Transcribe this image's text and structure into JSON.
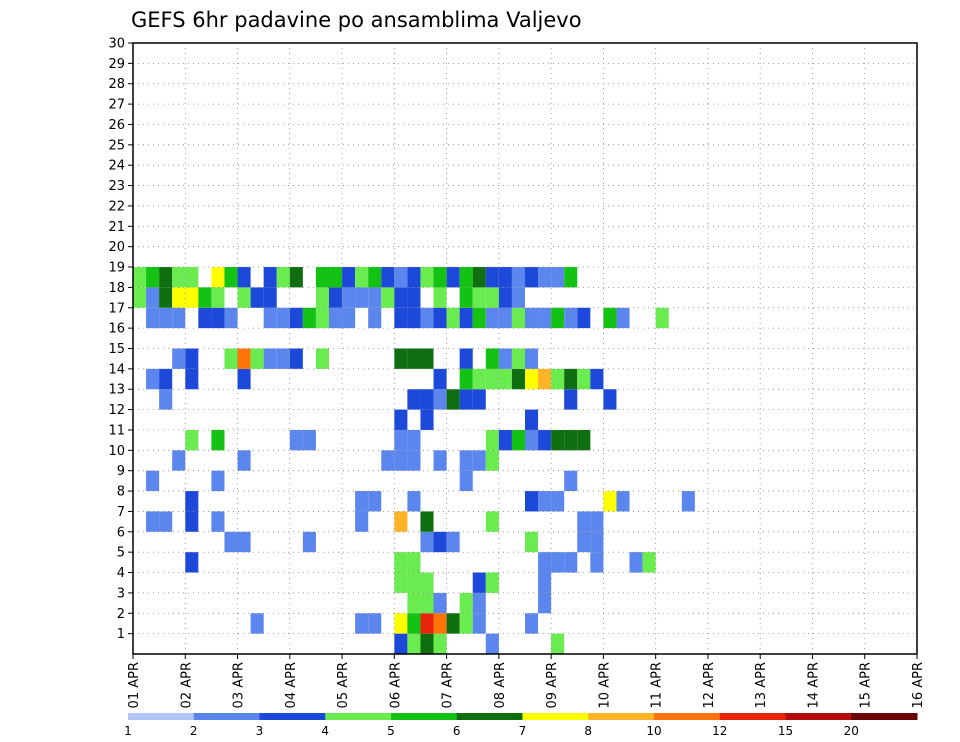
{
  "chart_data": {
    "type": "heatmap",
    "title": "GEFS 6hr padavine po ansamblima Valjevo",
    "x_tick_labels": [
      "01 APR",
      "02 APR",
      "03 APR",
      "04 APR",
      "05 APR",
      "06 APR",
      "07 APR",
      "08 APR",
      "09 APR",
      "10 APR",
      "11 APR",
      "12 APR",
      "13 APR",
      "14 APR",
      "15 APR",
      "16 APR"
    ],
    "y_tick_labels": [
      "1",
      "2",
      "3",
      "4",
      "5",
      "6",
      "7",
      "8",
      "9",
      "10",
      "11",
      "12",
      "13",
      "14",
      "15",
      "16",
      "17",
      "18",
      "19",
      "20",
      "21",
      "22",
      "23",
      "24",
      "25",
      "26",
      "27",
      "28",
      "29",
      "30"
    ],
    "x_range": [
      0,
      60
    ],
    "y_range": [
      0,
      30
    ],
    "grid": true,
    "colorbar": {
      "labels": [
        "1",
        "2",
        "3",
        "4",
        "5",
        "6",
        "7",
        "8",
        "10",
        "12",
        "15",
        "20"
      ],
      "colors": [
        "#b3c6f7",
        "#5b86ee",
        "#1c49d9",
        "#6aeb4f",
        "#14c214",
        "#0f6e0f",
        "#ffff00",
        "#ffb327",
        "#ff7308",
        "#e8250a",
        "#b40c0c",
        "#6b0606"
      ]
    },
    "cells": [
      [
        20,
        0,
        2
      ],
      [
        21,
        0,
        3
      ],
      [
        22,
        0,
        5
      ],
      [
        23,
        0,
        3
      ],
      [
        27,
        0,
        1
      ],
      [
        32,
        0,
        3
      ],
      [
        9,
        1,
        1
      ],
      [
        17,
        1,
        1
      ],
      [
        18,
        1,
        1
      ],
      [
        20,
        1,
        6
      ],
      [
        21,
        1,
        4
      ],
      [
        22,
        1,
        9
      ],
      [
        23,
        1,
        8
      ],
      [
        24,
        1,
        5
      ],
      [
        25,
        1,
        3
      ],
      [
        26,
        1,
        1
      ],
      [
        30,
        1,
        1
      ],
      [
        21,
        2,
        3
      ],
      [
        22,
        2,
        3
      ],
      [
        23,
        2,
        1
      ],
      [
        25,
        2,
        3
      ],
      [
        26,
        2,
        1
      ],
      [
        31,
        2,
        1
      ],
      [
        20,
        3,
        3
      ],
      [
        21,
        3,
        3
      ],
      [
        22,
        3,
        3
      ],
      [
        26,
        3,
        2
      ],
      [
        27,
        3,
        3
      ],
      [
        31,
        3,
        1
      ],
      [
        4,
        4,
        2
      ],
      [
        20,
        4,
        3
      ],
      [
        21,
        4,
        3
      ],
      [
        31,
        4,
        1
      ],
      [
        32,
        4,
        1
      ],
      [
        33,
        4,
        1
      ],
      [
        35,
        4,
        1
      ],
      [
        38,
        4,
        1
      ],
      [
        39,
        4,
        3
      ],
      [
        7,
        5,
        1
      ],
      [
        8,
        5,
        1
      ],
      [
        13,
        5,
        1
      ],
      [
        22,
        5,
        1
      ],
      [
        23,
        5,
        2
      ],
      [
        24,
        5,
        1
      ],
      [
        30,
        5,
        3
      ],
      [
        34,
        5,
        1
      ],
      [
        35,
        5,
        1
      ],
      [
        1,
        6,
        1
      ],
      [
        2,
        6,
        1
      ],
      [
        4,
        6,
        2
      ],
      [
        6,
        6,
        1
      ],
      [
        17,
        6,
        1
      ],
      [
        20,
        6,
        7
      ],
      [
        22,
        6,
        5
      ],
      [
        27,
        6,
        3
      ],
      [
        34,
        6,
        1
      ],
      [
        35,
        6,
        1
      ],
      [
        4,
        7,
        2
      ],
      [
        17,
        7,
        1
      ],
      [
        18,
        7,
        1
      ],
      [
        21,
        7,
        1
      ],
      [
        30,
        7,
        2
      ],
      [
        31,
        7,
        1
      ],
      [
        32,
        7,
        1
      ],
      [
        36,
        7,
        6
      ],
      [
        37,
        7,
        1
      ],
      [
        42,
        7,
        1
      ],
      [
        1,
        8,
        1
      ],
      [
        6,
        8,
        1
      ],
      [
        25,
        8,
        1
      ],
      [
        33,
        8,
        1
      ],
      [
        3,
        9,
        1
      ],
      [
        8,
        9,
        1
      ],
      [
        19,
        9,
        1
      ],
      [
        20,
        9,
        1
      ],
      [
        21,
        9,
        1
      ],
      [
        23,
        9,
        1
      ],
      [
        25,
        9,
        1
      ],
      [
        26,
        9,
        1
      ],
      [
        27,
        9,
        3
      ],
      [
        4,
        10,
        3
      ],
      [
        6,
        10,
        4
      ],
      [
        12,
        10,
        1
      ],
      [
        13,
        10,
        1
      ],
      [
        20,
        10,
        1
      ],
      [
        21,
        10,
        1
      ],
      [
        27,
        10,
        3
      ],
      [
        28,
        10,
        2
      ],
      [
        29,
        10,
        4
      ],
      [
        30,
        10,
        1
      ],
      [
        31,
        10,
        2
      ],
      [
        32,
        10,
        5
      ],
      [
        33,
        10,
        5
      ],
      [
        34,
        10,
        5
      ],
      [
        20,
        11,
        2
      ],
      [
        22,
        11,
        2
      ],
      [
        30,
        11,
        2
      ],
      [
        2,
        12,
        1
      ],
      [
        21,
        12,
        2
      ],
      [
        22,
        12,
        2
      ],
      [
        23,
        12,
        1
      ],
      [
        24,
        12,
        5
      ],
      [
        25,
        12,
        2
      ],
      [
        26,
        12,
        2
      ],
      [
        33,
        12,
        2
      ],
      [
        36,
        12,
        2
      ],
      [
        1,
        13,
        1
      ],
      [
        2,
        13,
        2
      ],
      [
        4,
        13,
        2
      ],
      [
        8,
        13,
        2
      ],
      [
        23,
        13,
        2
      ],
      [
        25,
        13,
        4
      ],
      [
        26,
        13,
        3
      ],
      [
        27,
        13,
        3
      ],
      [
        28,
        13,
        3
      ],
      [
        29,
        13,
        5
      ],
      [
        30,
        13,
        6
      ],
      [
        31,
        13,
        7
      ],
      [
        32,
        13,
        3
      ],
      [
        33,
        13,
        5
      ],
      [
        34,
        13,
        3
      ],
      [
        35,
        13,
        2
      ],
      [
        3,
        14,
        1
      ],
      [
        4,
        14,
        2
      ],
      [
        7,
        14,
        3
      ],
      [
        8,
        14,
        8
      ],
      [
        9,
        14,
        3
      ],
      [
        10,
        14,
        1
      ],
      [
        11,
        14,
        1
      ],
      [
        12,
        14,
        2
      ],
      [
        14,
        14,
        3
      ],
      [
        20,
        14,
        5
      ],
      [
        21,
        14,
        5
      ],
      [
        22,
        14,
        5
      ],
      [
        25,
        14,
        2
      ],
      [
        27,
        14,
        4
      ],
      [
        28,
        14,
        1
      ],
      [
        29,
        14,
        3
      ],
      [
        30,
        14,
        1
      ],
      [
        1,
        16,
        1
      ],
      [
        2,
        16,
        1
      ],
      [
        3,
        16,
        1
      ],
      [
        5,
        16,
        2
      ],
      [
        6,
        16,
        2
      ],
      [
        7,
        16,
        1
      ],
      [
        10,
        16,
        1
      ],
      [
        11,
        16,
        1
      ],
      [
        12,
        16,
        2
      ],
      [
        13,
        16,
        4
      ],
      [
        14,
        16,
        3
      ],
      [
        15,
        16,
        1
      ],
      [
        16,
        16,
        1
      ],
      [
        18,
        16,
        1
      ],
      [
        20,
        16,
        2
      ],
      [
        21,
        16,
        2
      ],
      [
        22,
        16,
        1
      ],
      [
        23,
        16,
        2
      ],
      [
        24,
        16,
        3
      ],
      [
        25,
        16,
        2
      ],
      [
        26,
        16,
        4
      ],
      [
        27,
        16,
        1
      ],
      [
        28,
        16,
        1
      ],
      [
        29,
        16,
        3
      ],
      [
        30,
        16,
        1
      ],
      [
        31,
        16,
        1
      ],
      [
        32,
        16,
        4
      ],
      [
        33,
        16,
        1
      ],
      [
        34,
        16,
        2
      ],
      [
        36,
        16,
        4
      ],
      [
        37,
        16,
        1
      ],
      [
        40,
        16,
        3
      ],
      [
        0,
        17,
        3
      ],
      [
        1,
        17,
        1
      ],
      [
        2,
        17,
        5
      ],
      [
        3,
        17,
        6
      ],
      [
        4,
        17,
        6
      ],
      [
        5,
        17,
        4
      ],
      [
        6,
        17,
        3
      ],
      [
        8,
        17,
        3
      ],
      [
        9,
        17,
        2
      ],
      [
        10,
        17,
        2
      ],
      [
        14,
        17,
        3
      ],
      [
        15,
        17,
        2
      ],
      [
        16,
        17,
        1
      ],
      [
        17,
        17,
        1
      ],
      [
        18,
        17,
        1
      ],
      [
        19,
        17,
        3
      ],
      [
        20,
        17,
        2
      ],
      [
        21,
        17,
        2
      ],
      [
        23,
        17,
        3
      ],
      [
        25,
        17,
        4
      ],
      [
        26,
        17,
        3
      ],
      [
        27,
        17,
        3
      ],
      [
        28,
        17,
        2
      ],
      [
        29,
        17,
        1
      ],
      [
        0,
        18,
        3
      ],
      [
        1,
        18,
        4
      ],
      [
        2,
        18,
        5
      ],
      [
        3,
        18,
        3
      ],
      [
        4,
        18,
        3
      ],
      [
        6,
        18,
        6
      ],
      [
        7,
        18,
        4
      ],
      [
        8,
        18,
        2
      ],
      [
        10,
        18,
        2
      ],
      [
        11,
        18,
        3
      ],
      [
        12,
        18,
        5
      ],
      [
        14,
        18,
        4
      ],
      [
        15,
        18,
        4
      ],
      [
        16,
        18,
        2
      ],
      [
        17,
        18,
        3
      ],
      [
        18,
        18,
        4
      ],
      [
        19,
        18,
        2
      ],
      [
        20,
        18,
        1
      ],
      [
        21,
        18,
        2
      ],
      [
        22,
        18,
        3
      ],
      [
        23,
        18,
        4
      ],
      [
        24,
        18,
        2
      ],
      [
        25,
        18,
        4
      ],
      [
        26,
        18,
        5
      ],
      [
        27,
        18,
        2
      ],
      [
        28,
        18,
        2
      ],
      [
        29,
        18,
        1
      ],
      [
        30,
        18,
        2
      ],
      [
        31,
        18,
        1
      ],
      [
        32,
        18,
        1
      ],
      [
        33,
        18,
        4
      ]
    ]
  }
}
